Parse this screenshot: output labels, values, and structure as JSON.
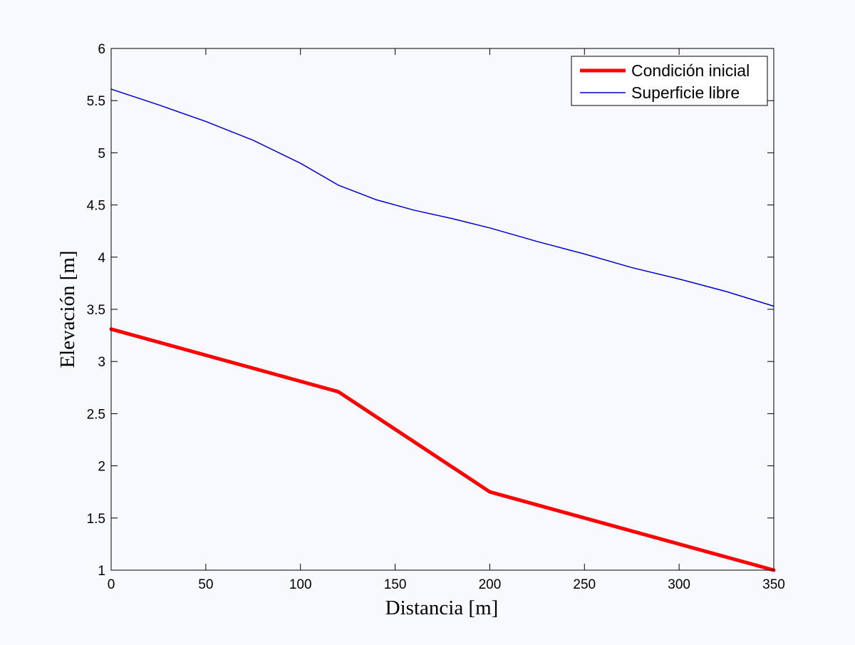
{
  "chart_data": {
    "type": "line",
    "title": "",
    "xlabel": "Distancia [m]",
    "ylabel": "Elevación [m]",
    "xlim": [
      0,
      350
    ],
    "ylim": [
      1,
      6
    ],
    "xticks": [
      0,
      50,
      100,
      150,
      200,
      250,
      300,
      350
    ],
    "yticks": [
      1,
      1.5,
      2,
      2.5,
      3,
      3.5,
      4,
      4.5,
      5,
      5.5,
      6
    ],
    "xtick_labels": [
      "0",
      "50",
      "100",
      "150",
      "200",
      "250",
      "300",
      "350"
    ],
    "ytick_labels": [
      "1",
      "1.5",
      "2",
      "2.5",
      "3",
      "3.5",
      "4",
      "4.5",
      "5",
      "5.5",
      "6"
    ],
    "grid": false,
    "legend_position": "top-right",
    "series": [
      {
        "name": "Condición inicial",
        "color": "#ff0000",
        "points": [
          [
            0,
            3.31
          ],
          [
            120,
            2.71
          ],
          [
            200,
            1.75
          ],
          [
            350,
            1.0
          ]
        ]
      },
      {
        "name": "Superficie libre",
        "color": "#0000cc",
        "points": [
          [
            0,
            5.61
          ],
          [
            25,
            5.46
          ],
          [
            50,
            5.3
          ],
          [
            75,
            5.12
          ],
          [
            100,
            4.9
          ],
          [
            120,
            4.69
          ],
          [
            140,
            4.55
          ],
          [
            160,
            4.45
          ],
          [
            180,
            4.37
          ],
          [
            200,
            4.28
          ],
          [
            225,
            4.15
          ],
          [
            250,
            4.03
          ],
          [
            275,
            3.9
          ],
          [
            300,
            3.79
          ],
          [
            325,
            3.67
          ],
          [
            350,
            3.53
          ]
        ]
      }
    ]
  }
}
